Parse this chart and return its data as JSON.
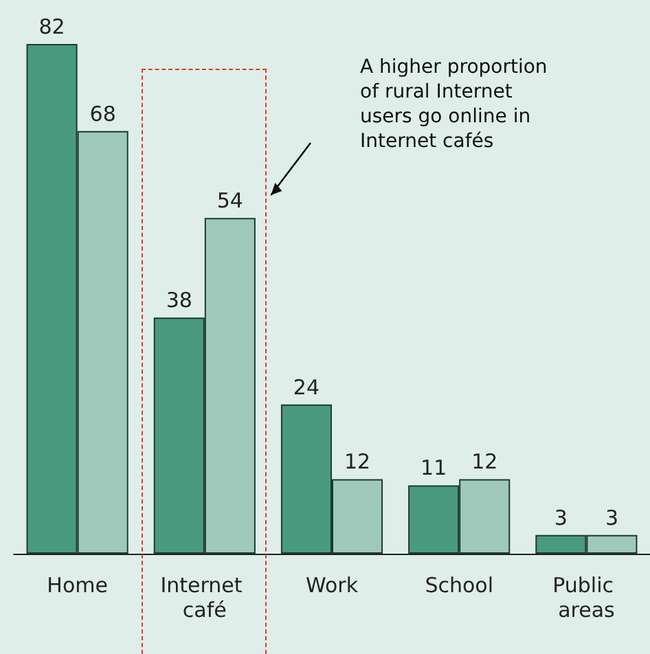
{
  "chart_data": {
    "type": "bar",
    "categories": [
      "Home",
      "Internet café",
      "Work",
      "School",
      "Public areas"
    ],
    "series": [
      {
        "color": "#4a9a80",
        "values": [
          82,
          38,
          24,
          11,
          3
        ]
      },
      {
        "color": "#9fc9bb",
        "values": [
          68,
          54,
          12,
          12,
          3
        ]
      }
    ],
    "data_labels": true,
    "grid": false,
    "annotations": [
      "A higher proportion of rural Internet users go online in Internet cafés"
    ]
  }
}
